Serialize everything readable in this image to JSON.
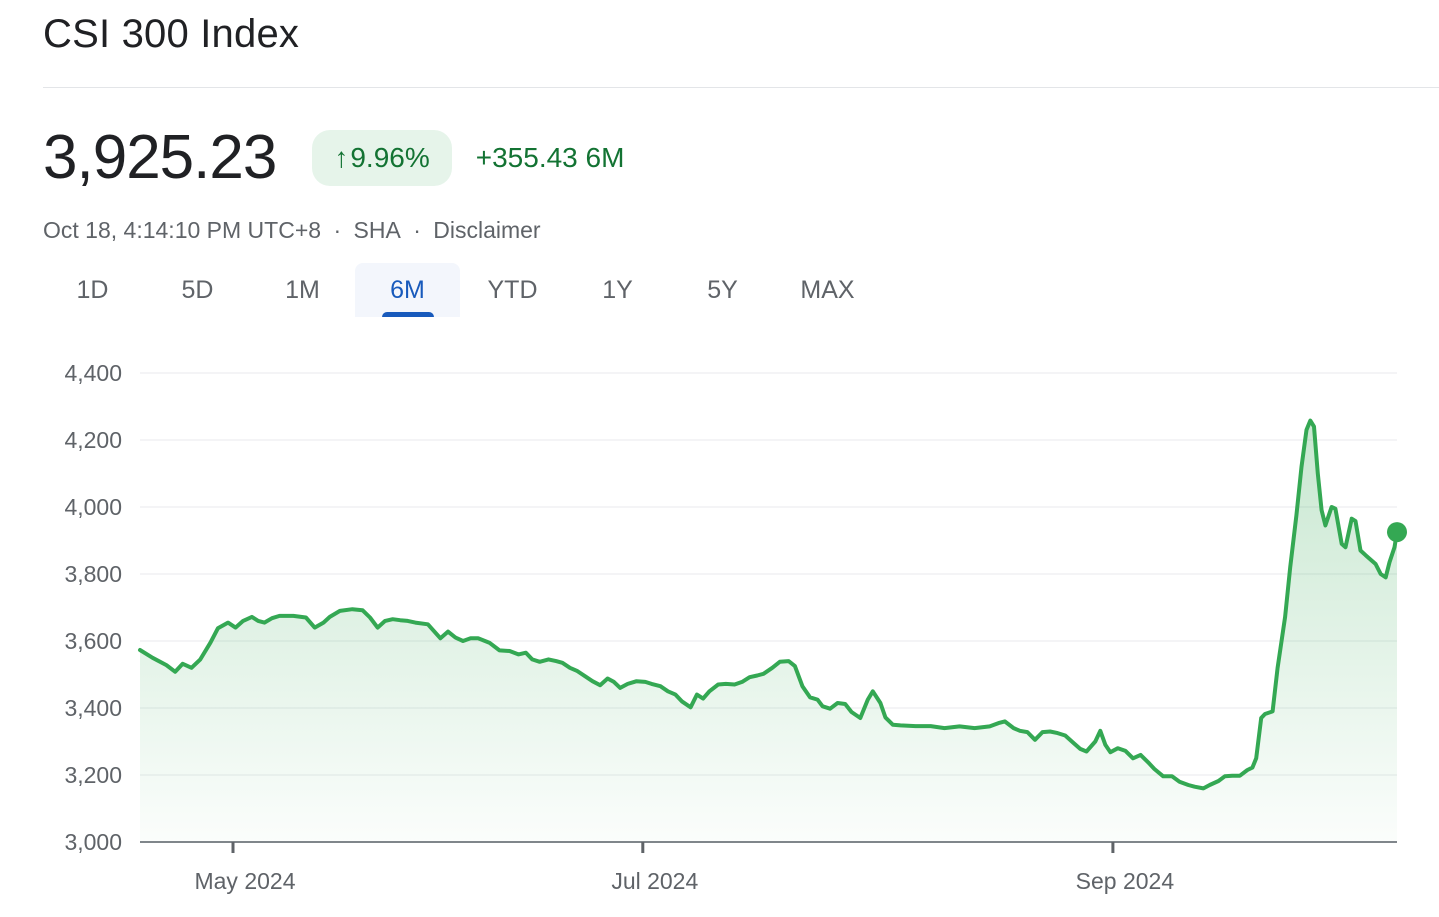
{
  "page": {
    "title": "CSI 300 Index"
  },
  "quote": {
    "price": "3,925.23",
    "change_arrow": "↑",
    "change_percent": "9.96%",
    "change_value": "+355.43",
    "change_period": "6M",
    "timestamp": "Oct 18, 4:14:10 PM UTC+8",
    "separator": "·",
    "exchange": "SHA",
    "disclaimer": "Disclaimer"
  },
  "tabs": [
    {
      "label": "1D",
      "active": false
    },
    {
      "label": "5D",
      "active": false
    },
    {
      "label": "1M",
      "active": false
    },
    {
      "label": "6M",
      "active": true
    },
    {
      "label": "YTD",
      "active": false
    },
    {
      "label": "1Y",
      "active": false
    },
    {
      "label": "5Y",
      "active": false
    },
    {
      "label": "MAX",
      "active": false
    }
  ],
  "colors": {
    "green_line": "#34a853",
    "green_text": "#137333",
    "badge_background": "#e6f4ea",
    "active_tab_blue": "#185abc",
    "text_primary": "#202124",
    "text_secondary": "#5f6368",
    "gridline": "#e8eaed",
    "axis_line": "#80868b"
  },
  "chart_data": {
    "type": "area",
    "title": "CSI 300 Index, 6 month price history",
    "grid": true,
    "ylim": [
      3000,
      4400
    ],
    "line_color": "#34a853",
    "last_point_marker": true,
    "last_price": 3925.23,
    "y_ticks": [
      {
        "value": 4400,
        "label": "4,400"
      },
      {
        "value": 4200,
        "label": "4,200"
      },
      {
        "value": 4000,
        "label": "4,000"
      },
      {
        "value": 3800,
        "label": "3,800"
      },
      {
        "value": 3600,
        "label": "3,600"
      },
      {
        "value": 3400,
        "label": "3,400"
      },
      {
        "value": 3200,
        "label": "3,200"
      },
      {
        "value": 3000,
        "label": "3,000"
      }
    ],
    "x_ticks": [
      {
        "label": "May 2024",
        "t": 0.074
      },
      {
        "label": "Jul 2024",
        "t": 0.4
      },
      {
        "label": "Sep 2024",
        "t": 0.774
      }
    ],
    "points": [
      [
        0.0,
        3573
      ],
      [
        0.01,
        3550
      ],
      [
        0.021,
        3528
      ],
      [
        0.028,
        3508
      ],
      [
        0.034,
        3532
      ],
      [
        0.041,
        3520
      ],
      [
        0.048,
        3545
      ],
      [
        0.056,
        3595
      ],
      [
        0.062,
        3638
      ],
      [
        0.07,
        3655
      ],
      [
        0.076,
        3640
      ],
      [
        0.082,
        3660
      ],
      [
        0.089,
        3672
      ],
      [
        0.094,
        3660
      ],
      [
        0.099,
        3655
      ],
      [
        0.105,
        3668
      ],
      [
        0.111,
        3675
      ],
      [
        0.122,
        3675
      ],
      [
        0.132,
        3670
      ],
      [
        0.139,
        3640
      ],
      [
        0.146,
        3655
      ],
      [
        0.151,
        3672
      ],
      [
        0.159,
        3690
      ],
      [
        0.169,
        3695
      ],
      [
        0.177,
        3692
      ],
      [
        0.183,
        3670
      ],
      [
        0.189,
        3640
      ],
      [
        0.195,
        3660
      ],
      [
        0.201,
        3665
      ],
      [
        0.207,
        3662
      ],
      [
        0.213,
        3660
      ],
      [
        0.219,
        3655
      ],
      [
        0.229,
        3650
      ],
      [
        0.239,
        3608
      ],
      [
        0.245,
        3628
      ],
      [
        0.251,
        3610
      ],
      [
        0.257,
        3600
      ],
      [
        0.263,
        3608
      ],
      [
        0.269,
        3608
      ],
      [
        0.278,
        3595
      ],
      [
        0.286,
        3572
      ],
      [
        0.294,
        3570
      ],
      [
        0.301,
        3560
      ],
      [
        0.307,
        3565
      ],
      [
        0.312,
        3545
      ],
      [
        0.318,
        3538
      ],
      [
        0.325,
        3545
      ],
      [
        0.331,
        3540
      ],
      [
        0.336,
        3535
      ],
      [
        0.342,
        3520
      ],
      [
        0.348,
        3510
      ],
      [
        0.354,
        3495
      ],
      [
        0.36,
        3480
      ],
      [
        0.366,
        3468
      ],
      [
        0.372,
        3488
      ],
      [
        0.377,
        3478
      ],
      [
        0.382,
        3460
      ],
      [
        0.388,
        3472
      ],
      [
        0.395,
        3480
      ],
      [
        0.402,
        3478
      ],
      [
        0.407,
        3472
      ],
      [
        0.414,
        3465
      ],
      [
        0.42,
        3450
      ],
      [
        0.426,
        3440
      ],
      [
        0.431,
        3420
      ],
      [
        0.438,
        3402
      ],
      [
        0.443,
        3440
      ],
      [
        0.448,
        3428
      ],
      [
        0.453,
        3450
      ],
      [
        0.46,
        3470
      ],
      [
        0.466,
        3472
      ],
      [
        0.473,
        3470
      ],
      [
        0.479,
        3478
      ],
      [
        0.485,
        3492
      ],
      [
        0.491,
        3497
      ],
      [
        0.496,
        3502
      ],
      [
        0.503,
        3520
      ],
      [
        0.509,
        3538
      ],
      [
        0.516,
        3540
      ],
      [
        0.521,
        3525
      ],
      [
        0.527,
        3465
      ],
      [
        0.533,
        3432
      ],
      [
        0.539,
        3425
      ],
      [
        0.543,
        3405
      ],
      [
        0.549,
        3398
      ],
      [
        0.555,
        3415
      ],
      [
        0.561,
        3412
      ],
      [
        0.566,
        3388
      ],
      [
        0.573,
        3370
      ],
      [
        0.579,
        3425
      ],
      [
        0.583,
        3450
      ],
      [
        0.589,
        3415
      ],
      [
        0.593,
        3372
      ],
      [
        0.599,
        3350
      ],
      [
        0.605,
        3348
      ],
      [
        0.617,
        3346
      ],
      [
        0.629,
        3346
      ],
      [
        0.64,
        3340
      ],
      [
        0.652,
        3345
      ],
      [
        0.664,
        3340
      ],
      [
        0.676,
        3345
      ],
      [
        0.683,
        3355
      ],
      [
        0.688,
        3360
      ],
      [
        0.695,
        3340
      ],
      [
        0.7,
        3332
      ],
      [
        0.706,
        3328
      ],
      [
        0.712,
        3305
      ],
      [
        0.718,
        3328
      ],
      [
        0.724,
        3330
      ],
      [
        0.73,
        3325
      ],
      [
        0.736,
        3318
      ],
      [
        0.742,
        3298
      ],
      [
        0.748,
        3278
      ],
      [
        0.753,
        3270
      ],
      [
        0.76,
        3300
      ],
      [
        0.764,
        3332
      ],
      [
        0.768,
        3290
      ],
      [
        0.772,
        3268
      ],
      [
        0.778,
        3280
      ],
      [
        0.784,
        3272
      ],
      [
        0.79,
        3250
      ],
      [
        0.796,
        3260
      ],
      [
        0.802,
        3238
      ],
      [
        0.807,
        3218
      ],
      [
        0.814,
        3196
      ],
      [
        0.821,
        3196
      ],
      [
        0.827,
        3180
      ],
      [
        0.834,
        3170
      ],
      [
        0.839,
        3165
      ],
      [
        0.846,
        3160
      ],
      [
        0.851,
        3170
      ],
      [
        0.858,
        3182
      ],
      [
        0.863,
        3196
      ],
      [
        0.869,
        3198
      ],
      [
        0.875,
        3198
      ],
      [
        0.881,
        3215
      ],
      [
        0.885,
        3222
      ],
      [
        0.888,
        3250
      ],
      [
        0.89,
        3310
      ],
      [
        0.892,
        3370
      ],
      [
        0.895,
        3382
      ],
      [
        0.901,
        3390
      ],
      [
        0.905,
        3520
      ],
      [
        0.911,
        3672
      ],
      [
        0.915,
        3820
      ],
      [
        0.92,
        3975
      ],
      [
        0.924,
        4120
      ],
      [
        0.928,
        4230
      ],
      [
        0.931,
        4258
      ],
      [
        0.934,
        4240
      ],
      [
        0.937,
        4100
      ],
      [
        0.94,
        3990
      ],
      [
        0.943,
        3945
      ],
      [
        0.948,
        4000
      ],
      [
        0.951,
        3995
      ],
      [
        0.956,
        3890
      ],
      [
        0.959,
        3880
      ],
      [
        0.964,
        3965
      ],
      [
        0.967,
        3958
      ],
      [
        0.971,
        3870
      ],
      [
        0.975,
        3856
      ],
      [
        0.979,
        3843
      ],
      [
        0.983,
        3830
      ],
      [
        0.987,
        3800
      ],
      [
        0.991,
        3790
      ],
      [
        0.994,
        3835
      ],
      [
        0.998,
        3880
      ],
      [
        1.0,
        3925
      ]
    ]
  }
}
